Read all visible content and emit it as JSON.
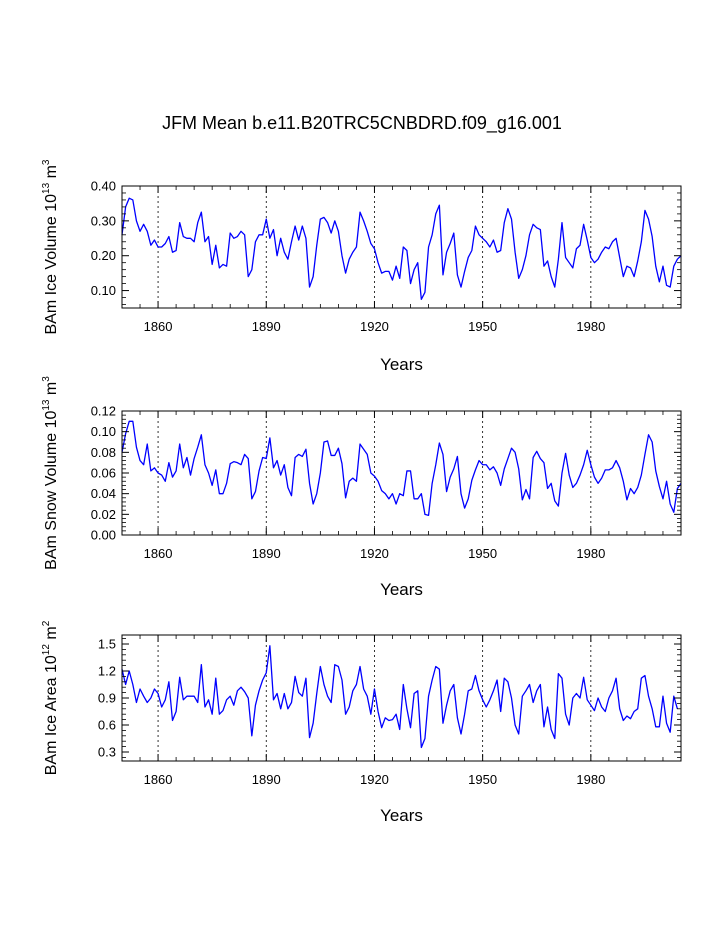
{
  "title": "JFM Mean b.e11.B20TRC5CNBDRD.f09_g16.001",
  "chart_data": [
    {
      "type": "line",
      "name": "ice-volume",
      "ylabel_parts": {
        "main": "BAm Ice Volume 10",
        "exp": "13",
        "unit": " m",
        "unit_exp": "3"
      },
      "xlabel": "Years",
      "xlim": [
        1850,
        2005
      ],
      "ylim": [
        0.05,
        0.4
      ],
      "xticks": [
        1860,
        1890,
        1920,
        1950,
        1980
      ],
      "yticks": [
        0.1,
        0.2,
        0.3,
        0.4
      ],
      "ytick_labels": [
        "0.10",
        "0.20",
        "0.30",
        "0.40"
      ],
      "grid": "vertical-dashed",
      "line_color": "#0000ff",
      "x_start": 1850,
      "values": [
        0.26,
        0.34,
        0.365,
        0.36,
        0.3,
        0.27,
        0.29,
        0.27,
        0.23,
        0.245,
        0.225,
        0.225,
        0.235,
        0.255,
        0.21,
        0.215,
        0.295,
        0.255,
        0.25,
        0.25,
        0.24,
        0.295,
        0.325,
        0.24,
        0.255,
        0.175,
        0.23,
        0.165,
        0.175,
        0.17,
        0.265,
        0.25,
        0.255,
        0.27,
        0.26,
        0.14,
        0.16,
        0.24,
        0.26,
        0.26,
        0.305,
        0.25,
        0.275,
        0.2,
        0.25,
        0.21,
        0.19,
        0.24,
        0.285,
        0.245,
        0.285,
        0.25,
        0.11,
        0.14,
        0.23,
        0.305,
        0.31,
        0.295,
        0.265,
        0.3,
        0.27,
        0.2,
        0.15,
        0.19,
        0.21,
        0.225,
        0.325,
        0.3,
        0.27,
        0.235,
        0.22,
        0.18,
        0.15,
        0.155,
        0.155,
        0.13,
        0.17,
        0.135,
        0.225,
        0.215,
        0.12,
        0.16,
        0.18,
        0.075,
        0.095,
        0.225,
        0.26,
        0.32,
        0.345,
        0.145,
        0.21,
        0.235,
        0.265,
        0.145,
        0.11,
        0.155,
        0.195,
        0.215,
        0.285,
        0.26,
        0.25,
        0.24,
        0.225,
        0.245,
        0.21,
        0.215,
        0.295,
        0.335,
        0.305,
        0.21,
        0.135,
        0.16,
        0.2,
        0.26,
        0.29,
        0.28,
        0.275,
        0.17,
        0.185,
        0.14,
        0.11,
        0.19,
        0.295,
        0.195,
        0.18,
        0.165,
        0.22,
        0.23,
        0.29,
        0.245,
        0.195,
        0.18,
        0.19,
        0.21,
        0.225,
        0.22,
        0.24,
        0.25,
        0.195,
        0.14,
        0.17,
        0.165,
        0.14,
        0.185,
        0.24,
        0.33,
        0.305,
        0.255,
        0.17,
        0.125,
        0.17,
        0.115,
        0.11,
        0.17,
        0.19,
        0.2
      ]
    },
    {
      "type": "line",
      "name": "snow-volume",
      "ylabel_parts": {
        "main": "BAm Snow Volume 10",
        "exp": "13",
        "unit": " m",
        "unit_exp": "3"
      },
      "xlabel": "Years",
      "xlim": [
        1850,
        2005
      ],
      "ylim": [
        0.0,
        0.12
      ],
      "xticks": [
        1860,
        1890,
        1920,
        1950,
        1980
      ],
      "yticks": [
        0.0,
        0.02,
        0.04,
        0.06,
        0.08,
        0.1,
        0.12
      ],
      "ytick_labels": [
        "0.00",
        "0.02",
        "0.04",
        "0.06",
        "0.08",
        "0.10",
        "0.12"
      ],
      "grid": "vertical-dashed",
      "line_color": "#0000ff",
      "x_start": 1850,
      "values": [
        0.08,
        0.098,
        0.11,
        0.11,
        0.085,
        0.072,
        0.068,
        0.088,
        0.062,
        0.065,
        0.06,
        0.058,
        0.052,
        0.07,
        0.056,
        0.062,
        0.088,
        0.065,
        0.075,
        0.058,
        0.074,
        0.085,
        0.097,
        0.068,
        0.06,
        0.048,
        0.063,
        0.04,
        0.04,
        0.05,
        0.069,
        0.071,
        0.07,
        0.068,
        0.078,
        0.074,
        0.035,
        0.042,
        0.062,
        0.075,
        0.074,
        0.094,
        0.065,
        0.072,
        0.058,
        0.068,
        0.046,
        0.038,
        0.075,
        0.078,
        0.076,
        0.083,
        0.05,
        0.03,
        0.04,
        0.06,
        0.09,
        0.091,
        0.077,
        0.077,
        0.084,
        0.069,
        0.036,
        0.052,
        0.055,
        0.052,
        0.088,
        0.083,
        0.078,
        0.06,
        0.057,
        0.052,
        0.043,
        0.04,
        0.035,
        0.04,
        0.03,
        0.04,
        0.038,
        0.062,
        0.062,
        0.035,
        0.035,
        0.04,
        0.02,
        0.019,
        0.05,
        0.068,
        0.089,
        0.078,
        0.042,
        0.056,
        0.064,
        0.076,
        0.04,
        0.026,
        0.035,
        0.053,
        0.063,
        0.072,
        0.068,
        0.068,
        0.063,
        0.066,
        0.06,
        0.048,
        0.064,
        0.074,
        0.084,
        0.08,
        0.064,
        0.034,
        0.044,
        0.035,
        0.075,
        0.081,
        0.074,
        0.07,
        0.045,
        0.05,
        0.033,
        0.028,
        0.06,
        0.079,
        0.058,
        0.046,
        0.05,
        0.058,
        0.068,
        0.082,
        0.068,
        0.056,
        0.05,
        0.055,
        0.063,
        0.063,
        0.065,
        0.072,
        0.065,
        0.052,
        0.034,
        0.045,
        0.04,
        0.046,
        0.058,
        0.078,
        0.097,
        0.09,
        0.062,
        0.047,
        0.035,
        0.052,
        0.03,
        0.022,
        0.045,
        0.05
      ]
    },
    {
      "type": "line",
      "name": "ice-area",
      "ylabel_parts": {
        "main": "BAm Ice Area 10",
        "exp": "12",
        "unit": " m",
        "unit_exp": "2"
      },
      "xlabel": "Years",
      "xlim": [
        1850,
        2005
      ],
      "ylim": [
        0.2,
        1.6
      ],
      "xticks": [
        1860,
        1890,
        1920,
        1950,
        1980
      ],
      "yticks": [
        0.3,
        0.6,
        0.9,
        1.2,
        1.5
      ],
      "ytick_labels": [
        "0.3",
        "0.6",
        "0.9",
        "1.2",
        "1.5"
      ],
      "grid": "vertical-dashed",
      "line_color": "#0000ff",
      "x_start": 1850,
      "values": [
        1.22,
        1.05,
        1.2,
        1.05,
        0.85,
        1.0,
        0.92,
        0.85,
        0.9,
        1.0,
        0.95,
        0.8,
        0.88,
        1.08,
        0.65,
        0.75,
        1.13,
        0.88,
        0.92,
        0.92,
        0.92,
        0.85,
        1.27,
        0.8,
        0.88,
        0.72,
        1.12,
        0.72,
        0.76,
        0.88,
        0.92,
        0.82,
        0.98,
        1.02,
        0.97,
        0.9,
        0.48,
        0.82,
        0.98,
        1.1,
        1.18,
        1.48,
        0.88,
        0.95,
        0.78,
        0.95,
        0.78,
        0.85,
        1.14,
        0.96,
        0.92,
        1.12,
        0.46,
        0.62,
        0.95,
        1.25,
        1.05,
        0.92,
        0.85,
        1.27,
        1.25,
        1.1,
        0.72,
        0.8,
        0.98,
        1.05,
        1.25,
        1.0,
        0.92,
        0.72,
        1.0,
        0.75,
        0.57,
        0.68,
        0.65,
        0.66,
        0.72,
        0.55,
        1.05,
        0.78,
        0.57,
        0.95,
        0.98,
        0.35,
        0.45,
        0.92,
        1.1,
        1.25,
        1.22,
        0.62,
        0.82,
        0.98,
        1.05,
        0.68,
        0.5,
        0.72,
        0.98,
        1.0,
        1.15,
        0.98,
        0.88,
        0.8,
        0.88,
        0.98,
        1.1,
        0.75,
        1.12,
        1.08,
        0.9,
        0.6,
        0.5,
        0.92,
        0.98,
        1.05,
        0.85,
        0.98,
        1.05,
        0.58,
        0.8,
        0.55,
        0.45,
        1.17,
        1.12,
        0.72,
        0.6,
        0.9,
        0.95,
        0.9,
        1.13,
        0.88,
        0.82,
        0.76,
        0.9,
        0.8,
        0.75,
        0.9,
        0.98,
        1.12,
        0.78,
        0.65,
        0.7,
        0.67,
        0.75,
        0.78,
        1.12,
        1.15,
        0.92,
        0.78,
        0.58,
        0.58,
        0.92,
        0.62,
        0.52,
        0.92,
        0.78
      ]
    }
  ]
}
